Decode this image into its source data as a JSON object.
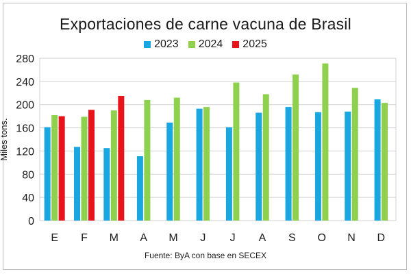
{
  "chart_data": {
    "type": "bar",
    "title": "Exportaciones de carne vacuna de Brasil",
    "ylabel": "Miles tons.",
    "xlabel": "",
    "source": "Fuente: ByA con base en SECEX",
    "categories": [
      "E",
      "F",
      "M",
      "A",
      "M",
      "J",
      "J",
      "A",
      "S",
      "O",
      "N",
      "D"
    ],
    "ylim": [
      0,
      280
    ],
    "yticks": [
      0,
      40,
      80,
      120,
      160,
      200,
      240,
      280
    ],
    "grid": true,
    "legend_position": "top-center",
    "series": [
      {
        "name": "2023",
        "color": "#1aa7e0",
        "values": [
          161,
          127,
          125,
          111,
          169,
          193,
          161,
          186,
          196,
          187,
          188,
          209
        ]
      },
      {
        "name": "2024",
        "color": "#8fd14f",
        "values": [
          182,
          179,
          190,
          208,
          212,
          196,
          238,
          218,
          252,
          271,
          229,
          203
        ]
      },
      {
        "name": "2025",
        "color": "#e8141c",
        "values": [
          180,
          191,
          215,
          null,
          null,
          null,
          null,
          null,
          null,
          null,
          null,
          null
        ]
      }
    ]
  }
}
